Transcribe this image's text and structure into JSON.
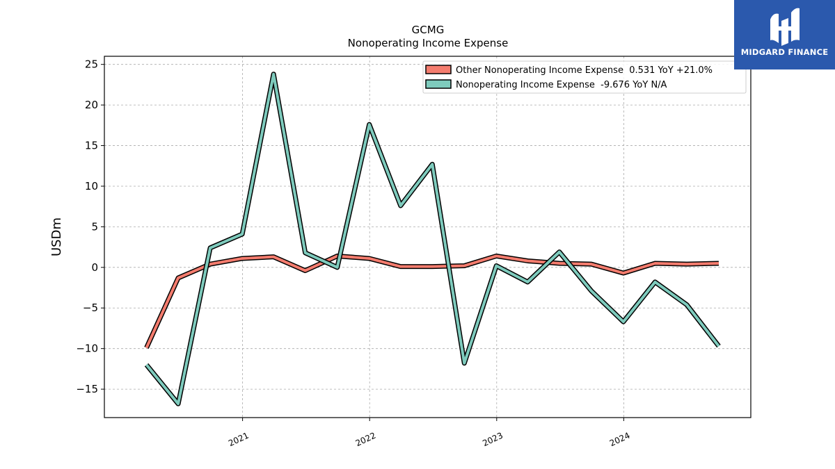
{
  "chart_data": {
    "type": "line",
    "title": "GCMG",
    "subtitle": "Nonoperating Income Expense",
    "ylabel": "USDm",
    "xlabel": "",
    "ylim": [
      -18.5,
      26
    ],
    "yticks": [
      -15,
      -10,
      -5,
      0,
      5,
      10,
      15,
      20,
      25
    ],
    "x_tick_labels": [
      "2021",
      "2022",
      "2023",
      "2024"
    ],
    "x_tick_dates": [
      "2021-01-01",
      "2022-01-01",
      "2023-01-01",
      "2024-01-01"
    ],
    "x_range": [
      "2019-12-01",
      "2024-12-31"
    ],
    "grid": true,
    "legend_position": "top-right",
    "x": [
      "2020-03-31",
      "2020-06-30",
      "2020-09-30",
      "2020-12-31",
      "2021-03-31",
      "2021-06-30",
      "2021-09-30",
      "2021-12-31",
      "2022-03-31",
      "2022-06-30",
      "2022-09-30",
      "2022-12-31",
      "2023-03-31",
      "2023-06-30",
      "2023-09-30",
      "2023-12-31",
      "2024-03-31",
      "2024-06-30",
      "2024-09-30"
    ],
    "series": [
      {
        "name": "Other Nonoperating Income Expense",
        "legend": "Other Nonoperating Income Expense  0.531 YoY +21.0%",
        "color": "#f47c6e",
        "values": [
          -9.9,
          -1.3,
          0.4,
          1.1,
          1.3,
          -0.4,
          1.4,
          1.1,
          0.1,
          0.1,
          0.2,
          1.4,
          0.8,
          0.5,
          0.4,
          -0.7,
          0.5,
          0.4,
          0.5
        ]
      },
      {
        "name": "Nonoperating Income Expense",
        "legend": "Nonoperating Income Expense  -9.676 YoY N/A",
        "color": "#7ecbbd",
        "values": [
          -12.0,
          -16.8,
          2.4,
          4.1,
          23.8,
          1.8,
          0.0,
          17.6,
          7.6,
          12.7,
          -11.8,
          0.2,
          -1.8,
          1.9,
          -2.9,
          -6.7,
          -1.8,
          -4.6,
          -9.7
        ]
      }
    ]
  },
  "branding": {
    "logo_text": "MIDGARD FINANCE",
    "logo_color": "#2b59ad"
  }
}
